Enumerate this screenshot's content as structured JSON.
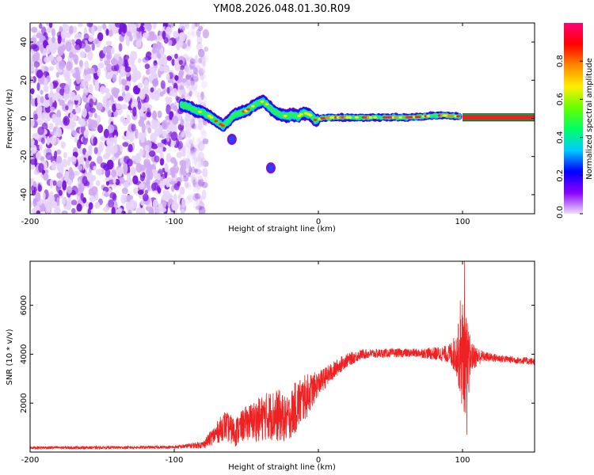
{
  "title": "YM08.2026.048.01.30.R09",
  "colors": {
    "snr_line": "#ee2222",
    "noise_purple": "#7711dd",
    "noise_light": "#cfa8f2",
    "band_line": "#004400"
  },
  "chart_data": [
    {
      "id": "spectrogram",
      "type": "heatmap",
      "xlabel": "Height of straight line (km)",
      "ylabel": "Frequency (Hz)",
      "xlim": [
        -200,
        150
      ],
      "ylim": [
        -50,
        50
      ],
      "xticks": [
        {
          "value": -200,
          "label": "-200"
        },
        {
          "value": -100,
          "label": "-100"
        },
        {
          "value": 0,
          "label": "0"
        },
        {
          "value": 100,
          "label": "100"
        }
      ],
      "yticks": [
        {
          "value": -40,
          "label": "-40"
        },
        {
          "value": -20,
          "label": "-20"
        },
        {
          "value": 0,
          "label": "0"
        },
        {
          "value": 20,
          "label": "20"
        },
        {
          "value": 40,
          "label": "40"
        }
      ],
      "noise_region_x": [
        -200,
        -82
      ],
      "ridge": [
        {
          "x": -95,
          "y": 7
        },
        {
          "x": -90,
          "y": 6
        },
        {
          "x": -85,
          "y": 4
        },
        {
          "x": -80,
          "y": 3
        },
        {
          "x": -75,
          "y": 1
        },
        {
          "x": -70,
          "y": -2
        },
        {
          "x": -66,
          "y": -4
        },
        {
          "x": -62,
          "y": -1
        },
        {
          "x": -58,
          "y": 2
        },
        {
          "x": -54,
          "y": 3
        },
        {
          "x": -50,
          "y": 4
        },
        {
          "x": -46,
          "y": 6
        },
        {
          "x": -42,
          "y": 8
        },
        {
          "x": -38,
          "y": 9
        },
        {
          "x": -34,
          "y": 6
        },
        {
          "x": -30,
          "y": 3
        },
        {
          "x": -26,
          "y": 2
        },
        {
          "x": -22,
          "y": 1
        },
        {
          "x": -18,
          "y": 2
        },
        {
          "x": -14,
          "y": 1
        },
        {
          "x": -10,
          "y": 3
        },
        {
          "x": -6,
          "y": 2
        },
        {
          "x": -2,
          "y": -1
        },
        {
          "x": 2,
          "y": 0
        },
        {
          "x": 10,
          "y": 0.5
        },
        {
          "x": 20,
          "y": 0.5
        },
        {
          "x": 30,
          "y": 0.5
        },
        {
          "x": 40,
          "y": 0.5
        },
        {
          "x": 50,
          "y": 0.5
        },
        {
          "x": 60,
          "y": 0.5
        },
        {
          "x": 70,
          "y": 0.8
        },
        {
          "x": 80,
          "y": 1.5
        },
        {
          "x": 90,
          "y": 1.5
        },
        {
          "x": 98,
          "y": 1
        }
      ],
      "band_y": 0.5,
      "band_x": [
        100,
        150
      ],
      "blobs": [
        {
          "x": -60,
          "y": -11
        },
        {
          "x": -33,
          "y": -26
        }
      ]
    },
    {
      "id": "snr",
      "type": "line",
      "xlabel": "Height of straight line (km)",
      "ylabel": "SNR (10 * v/v)",
      "xlim": [
        -200,
        150
      ],
      "ylim": [
        0,
        7800
      ],
      "xticks": [
        {
          "value": -200,
          "label": "-200"
        },
        {
          "value": -100,
          "label": "-100"
        },
        {
          "value": 0,
          "label": "0"
        },
        {
          "value": 100,
          "label": "100"
        }
      ],
      "yticks": [
        {
          "value": 2000,
          "label": "2000"
        },
        {
          "value": 4000,
          "label": "4000"
        },
        {
          "value": 6000,
          "label": "6000"
        }
      ],
      "envelope": [
        {
          "x": -200,
          "mean": 180,
          "amp": 60
        },
        {
          "x": -150,
          "mean": 180,
          "amp": 60
        },
        {
          "x": -100,
          "mean": 200,
          "amp": 60
        },
        {
          "x": -80,
          "mean": 300,
          "amp": 150
        },
        {
          "x": -72,
          "mean": 700,
          "amp": 400
        },
        {
          "x": -65,
          "mean": 1100,
          "amp": 600
        },
        {
          "x": -58,
          "mean": 800,
          "amp": 600
        },
        {
          "x": -50,
          "mean": 1200,
          "amp": 700
        },
        {
          "x": -42,
          "mean": 1300,
          "amp": 900
        },
        {
          "x": -35,
          "mean": 1500,
          "amp": 1000
        },
        {
          "x": -28,
          "mean": 1500,
          "amp": 1100
        },
        {
          "x": -22,
          "mean": 1300,
          "amp": 900
        },
        {
          "x": -15,
          "mean": 1900,
          "amp": 1100
        },
        {
          "x": -8,
          "mean": 2300,
          "amp": 900
        },
        {
          "x": 0,
          "mean": 2800,
          "amp": 500
        },
        {
          "x": 8,
          "mean": 3200,
          "amp": 400
        },
        {
          "x": 18,
          "mean": 3700,
          "amp": 300
        },
        {
          "x": 30,
          "mean": 4000,
          "amp": 200
        },
        {
          "x": 50,
          "mean": 4050,
          "amp": 180
        },
        {
          "x": 70,
          "mean": 4050,
          "amp": 180
        },
        {
          "x": 90,
          "mean": 4000,
          "amp": 350
        },
        {
          "x": 96,
          "mean": 4000,
          "amp": 900
        },
        {
          "x": 100,
          "mean": 4000,
          "amp": 2400
        },
        {
          "x": 103,
          "mean": 3500,
          "amp": 2000
        },
        {
          "x": 106,
          "mean": 3900,
          "amp": 600
        },
        {
          "x": 115,
          "mean": 3900,
          "amp": 200
        },
        {
          "x": 130,
          "mean": 3800,
          "amp": 150
        },
        {
          "x": 150,
          "mean": 3700,
          "amp": 150
        }
      ],
      "spikes": [
        {
          "x": 101.5,
          "y": 7800
        },
        {
          "x": 103,
          "y": 700
        },
        {
          "x": 98.5,
          "y": 6200
        }
      ]
    }
  ],
  "colorbar": {
    "label": "Normalized spectral amplitude",
    "range": [
      0,
      1
    ],
    "ticks": [
      {
        "value": 0,
        "label": "0.0"
      },
      {
        "value": 0.2,
        "label": "0.2"
      },
      {
        "value": 0.4,
        "label": "0.4"
      },
      {
        "value": 0.6,
        "label": "0.6"
      },
      {
        "value": 0.8,
        "label": "0.8"
      }
    ],
    "stops": [
      "#eeddff",
      "#8800ff",
      "#0000ff",
      "#00ccff",
      "#00ff66",
      "#66ff00",
      "#ffee00",
      "#ff8800",
      "#ff0000",
      "#ff0077"
    ]
  }
}
